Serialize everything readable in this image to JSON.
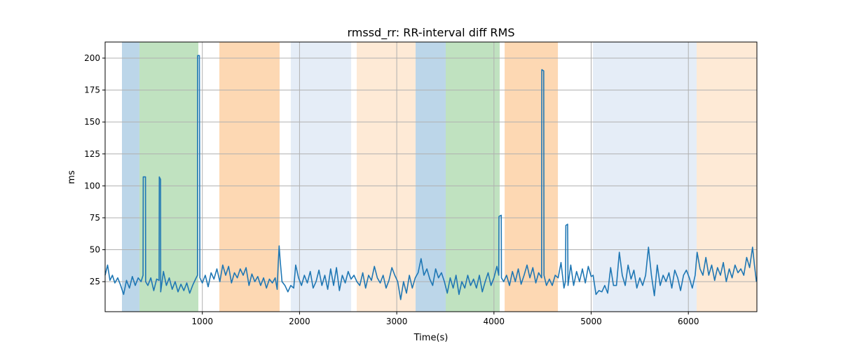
{
  "chart_data": {
    "type": "line",
    "title": "rmssd_rr: RR-interval diff RMS",
    "xlabel": "Time(s)",
    "ylabel": "ms",
    "xlim": [
      0,
      6705
    ],
    "ylim": [
      1.5,
      212.6
    ],
    "xticks": [
      1000,
      2000,
      3000,
      4000,
      5000,
      6000
    ],
    "yticks": [
      25,
      50,
      75,
      100,
      125,
      150,
      175,
      200
    ],
    "grid": true,
    "line_color": "#1f77b4",
    "regions": [
      {
        "start": 173,
        "end": 353,
        "color": "#bcd6e9"
      },
      {
        "start": 353,
        "end": 959,
        "color": "#c0e2c0"
      },
      {
        "start": 1175,
        "end": 1795,
        "color": "#fdd8b3"
      },
      {
        "start": 1910,
        "end": 2531,
        "color": "#e5edf7"
      },
      {
        "start": 2588,
        "end": 3194,
        "color": "#feead6"
      },
      {
        "start": 3194,
        "end": 3504,
        "color": "#bcd6e9"
      },
      {
        "start": 3504,
        "end": 4059,
        "color": "#c0e2c0"
      },
      {
        "start": 4110,
        "end": 4658,
        "color": "#fdd8b3"
      },
      {
        "start": 5018,
        "end": 6085,
        "color": "#e5edf7"
      },
      {
        "start": 6085,
        "end": 6705,
        "color": "#feead6"
      }
    ],
    "series": [
      {
        "name": "rmssd_rr",
        "points": [
          [
            0,
            30
          ],
          [
            25,
            38
          ],
          [
            50,
            26
          ],
          [
            75,
            30
          ],
          [
            100,
            24
          ],
          [
            130,
            28
          ],
          [
            160,
            22
          ],
          [
            190,
            15
          ],
          [
            220,
            26
          ],
          [
            250,
            20
          ],
          [
            280,
            29
          ],
          [
            310,
            22
          ],
          [
            340,
            28
          ],
          [
            370,
            25
          ],
          [
            390,
            30
          ],
          [
            392,
            107
          ],
          [
            415,
            107
          ],
          [
            417,
            25
          ],
          [
            440,
            22
          ],
          [
            470,
            28
          ],
          [
            500,
            18
          ],
          [
            530,
            27
          ],
          [
            555,
            26
          ],
          [
            557,
            107
          ],
          [
            570,
            105
          ],
          [
            572,
            17
          ],
          [
            600,
            33
          ],
          [
            630,
            22
          ],
          [
            660,
            28
          ],
          [
            690,
            19
          ],
          [
            720,
            25
          ],
          [
            750,
            17
          ],
          [
            780,
            23
          ],
          [
            810,
            18
          ],
          [
            840,
            24
          ],
          [
            870,
            16
          ],
          [
            900,
            22
          ],
          [
            930,
            27
          ],
          [
            950,
            30
          ],
          [
            952,
            202
          ],
          [
            970,
            202
          ],
          [
            975,
            28
          ],
          [
            1000,
            24
          ],
          [
            1030,
            30
          ],
          [
            1060,
            21
          ],
          [
            1090,
            32
          ],
          [
            1120,
            27
          ],
          [
            1150,
            35
          ],
          [
            1180,
            25
          ],
          [
            1210,
            38
          ],
          [
            1240,
            30
          ],
          [
            1270,
            37
          ],
          [
            1300,
            24
          ],
          [
            1330,
            32
          ],
          [
            1360,
            28
          ],
          [
            1390,
            35
          ],
          [
            1420,
            30
          ],
          [
            1450,
            36
          ],
          [
            1480,
            22
          ],
          [
            1510,
            31
          ],
          [
            1540,
            25
          ],
          [
            1570,
            29
          ],
          [
            1600,
            22
          ],
          [
            1630,
            28
          ],
          [
            1660,
            20
          ],
          [
            1690,
            27
          ],
          [
            1720,
            24
          ],
          [
            1750,
            28
          ],
          [
            1770,
            19
          ],
          [
            1780,
            38
          ],
          [
            1790,
            53
          ],
          [
            1800,
            42
          ],
          [
            1820,
            25
          ],
          [
            1850,
            22
          ],
          [
            1880,
            17
          ],
          [
            1910,
            22
          ],
          [
            1940,
            20
          ],
          [
            1960,
            38
          ],
          [
            1990,
            28
          ],
          [
            2020,
            22
          ],
          [
            2050,
            30
          ],
          [
            2080,
            24
          ],
          [
            2110,
            33
          ],
          [
            2140,
            20
          ],
          [
            2170,
            25
          ],
          [
            2200,
            34
          ],
          [
            2230,
            22
          ],
          [
            2260,
            30
          ],
          [
            2290,
            19
          ],
          [
            2320,
            35
          ],
          [
            2350,
            22
          ],
          [
            2380,
            36
          ],
          [
            2410,
            18
          ],
          [
            2440,
            30
          ],
          [
            2470,
            24
          ],
          [
            2500,
            33
          ],
          [
            2530,
            27
          ],
          [
            2560,
            30
          ],
          [
            2590,
            25
          ],
          [
            2620,
            22
          ],
          [
            2650,
            32
          ],
          [
            2680,
            20
          ],
          [
            2710,
            30
          ],
          [
            2740,
            26
          ],
          [
            2770,
            37
          ],
          [
            2800,
            28
          ],
          [
            2830,
            24
          ],
          [
            2860,
            30
          ],
          [
            2890,
            20
          ],
          [
            2920,
            26
          ],
          [
            2950,
            36
          ],
          [
            2980,
            30
          ],
          [
            3010,
            25
          ],
          [
            3040,
            11
          ],
          [
            3070,
            25
          ],
          [
            3100,
            16
          ],
          [
            3130,
            30
          ],
          [
            3160,
            20
          ],
          [
            3190,
            28
          ],
          [
            3220,
            32
          ],
          [
            3250,
            43
          ],
          [
            3280,
            30
          ],
          [
            3310,
            35
          ],
          [
            3340,
            27
          ],
          [
            3370,
            22
          ],
          [
            3400,
            35
          ],
          [
            3430,
            28
          ],
          [
            3460,
            32
          ],
          [
            3490,
            25
          ],
          [
            3520,
            16
          ],
          [
            3550,
            28
          ],
          [
            3580,
            20
          ],
          [
            3610,
            30
          ],
          [
            3640,
            15
          ],
          [
            3670,
            25
          ],
          [
            3700,
            20
          ],
          [
            3730,
            30
          ],
          [
            3760,
            22
          ],
          [
            3790,
            27
          ],
          [
            3820,
            20
          ],
          [
            3850,
            30
          ],
          [
            3880,
            17
          ],
          [
            3910,
            25
          ],
          [
            3940,
            32
          ],
          [
            3970,
            22
          ],
          [
            4000,
            28
          ],
          [
            4030,
            37
          ],
          [
            4050,
            30
          ],
          [
            4052,
            76
          ],
          [
            4075,
            77
          ],
          [
            4077,
            28
          ],
          [
            4100,
            25
          ],
          [
            4130,
            30
          ],
          [
            4160,
            22
          ],
          [
            4190,
            33
          ],
          [
            4220,
            25
          ],
          [
            4250,
            35
          ],
          [
            4280,
            23
          ],
          [
            4310,
            30
          ],
          [
            4340,
            38
          ],
          [
            4370,
            28
          ],
          [
            4400,
            36
          ],
          [
            4430,
            24
          ],
          [
            4460,
            32
          ],
          [
            4490,
            28
          ],
          [
            4492,
            191
          ],
          [
            4512,
            190
          ],
          [
            4515,
            30
          ],
          [
            4540,
            22
          ],
          [
            4570,
            27
          ],
          [
            4600,
            22
          ],
          [
            4630,
            30
          ],
          [
            4660,
            28
          ],
          [
            4690,
            40
          ],
          [
            4720,
            20
          ],
          [
            4735,
            25
          ],
          [
            4740,
            69
          ],
          [
            4758,
            70
          ],
          [
            4762,
            22
          ],
          [
            4790,
            38
          ],
          [
            4820,
            22
          ],
          [
            4850,
            33
          ],
          [
            4880,
            25
          ],
          [
            4910,
            35
          ],
          [
            4940,
            24
          ],
          [
            4970,
            37
          ],
          [
            5000,
            29
          ],
          [
            5020,
            30
          ],
          [
            5050,
            15
          ],
          [
            5080,
            18
          ],
          [
            5110,
            17
          ],
          [
            5140,
            22
          ],
          [
            5170,
            16
          ],
          [
            5200,
            36
          ],
          [
            5230,
            22
          ],
          [
            5260,
            22
          ],
          [
            5290,
            48
          ],
          [
            5320,
            30
          ],
          [
            5350,
            22
          ],
          [
            5380,
            38
          ],
          [
            5410,
            27
          ],
          [
            5440,
            34
          ],
          [
            5470,
            20
          ],
          [
            5500,
            28
          ],
          [
            5530,
            22
          ],
          [
            5560,
            30
          ],
          [
            5590,
            52
          ],
          [
            5620,
            30
          ],
          [
            5650,
            14
          ],
          [
            5680,
            38
          ],
          [
            5710,
            22
          ],
          [
            5740,
            30
          ],
          [
            5770,
            25
          ],
          [
            5800,
            32
          ],
          [
            5830,
            20
          ],
          [
            5860,
            34
          ],
          [
            5890,
            28
          ],
          [
            5920,
            18
          ],
          [
            5950,
            30
          ],
          [
            5980,
            34
          ],
          [
            6010,
            28
          ],
          [
            6040,
            20
          ],
          [
            6070,
            30
          ],
          [
            6090,
            48
          ],
          [
            6120,
            35
          ],
          [
            6150,
            30
          ],
          [
            6180,
            44
          ],
          [
            6210,
            30
          ],
          [
            6240,
            38
          ],
          [
            6270,
            26
          ],
          [
            6300,
            36
          ],
          [
            6330,
            30
          ],
          [
            6360,
            40
          ],
          [
            6390,
            25
          ],
          [
            6420,
            35
          ],
          [
            6450,
            28
          ],
          [
            6480,
            38
          ],
          [
            6510,
            32
          ],
          [
            6540,
            35
          ],
          [
            6570,
            30
          ],
          [
            6600,
            44
          ],
          [
            6630,
            36
          ],
          [
            6660,
            52
          ],
          [
            6680,
            38
          ],
          [
            6700,
            25
          ]
        ]
      }
    ]
  }
}
